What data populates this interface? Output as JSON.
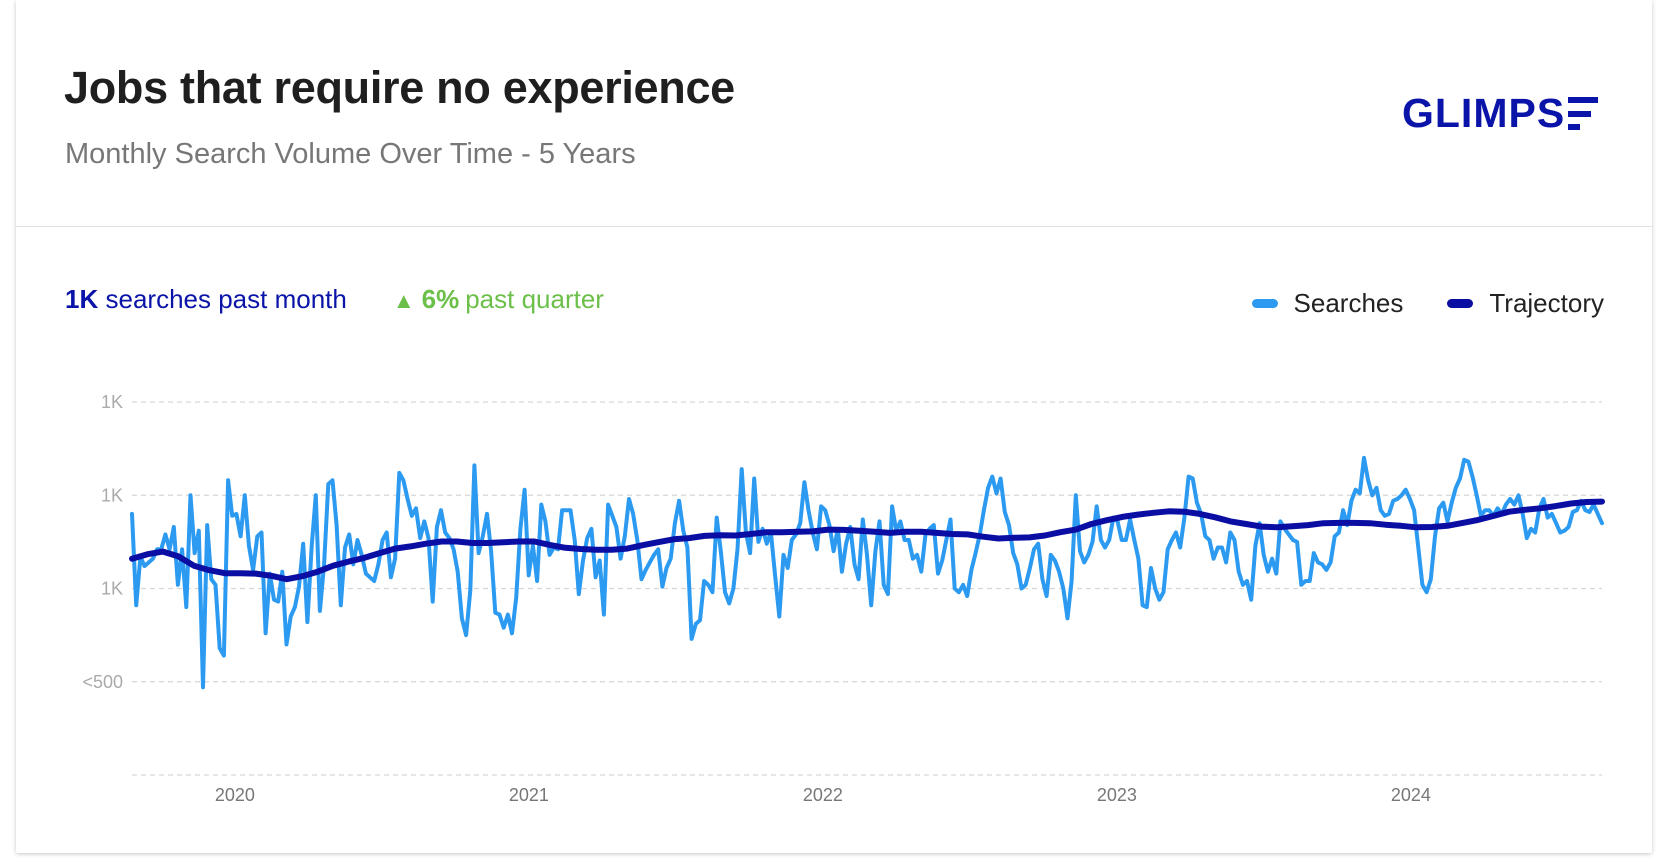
{
  "card": {
    "title": "Jobs that require no experience",
    "subtitle": "Monthly Search Volume Over Time - 5 Years",
    "logo": "GLIMPS"
  },
  "stats": {
    "month_value": "1K",
    "month_text": "searches past month",
    "quarter_value": "6%",
    "quarter_text": "past quarter",
    "quarter_arrow": "▲"
  },
  "chart_data": {
    "type": "line",
    "title": "",
    "xlabel": "",
    "ylabel": "",
    "x_start": 2019.7,
    "x_end": 2024.7,
    "x_ticks": [
      {
        "value": 2020.05,
        "label": "2020"
      },
      {
        "value": 2021.05,
        "label": "2021"
      },
      {
        "value": 2022.05,
        "label": "2022"
      },
      {
        "value": 2023.05,
        "label": "2023"
      },
      {
        "value": 2024.05,
        "label": "2024"
      }
    ],
    "y_ticks": [
      {
        "value": 1250,
        "label": "1K"
      },
      {
        "value": 1000,
        "label": "1K"
      },
      {
        "value": 750,
        "label": "1K"
      },
      {
        "value": 500,
        "label": "<500"
      },
      {
        "value": 250,
        "label": ""
      }
    ],
    "ylim": [
      250,
      1250
    ],
    "grid": true,
    "legend_position": "top-right",
    "series": [
      {
        "name": "Searches",
        "color": "#2b9af0",
        "values": [
          950,
          705,
          835,
          810,
          820,
          830,
          855,
          855,
          895,
          855,
          915,
          760,
          855,
          700,
          1000,
          845,
          905,
          485,
          920,
          775,
          760,
          590,
          570,
          1040,
          945,
          950,
          890,
          1000,
          865,
          800,
          890,
          900,
          630,
          790,
          720,
          715,
          795,
          600,
          675,
          700,
          755,
          870,
          660,
          860,
          1000,
          690,
          815,
          1030,
          1040,
          920,
          705,
          860,
          895,
          815,
          880,
          840,
          790,
          780,
          770,
          815,
          880,
          900,
          780,
          830,
          1060,
          1040,
          990,
          945,
          965,
          885,
          930,
          885,
          715,
          915,
          960,
          900,
          885,
          855,
          795,
          670,
          625,
          745,
          1080,
          845,
          890,
          950,
          850,
          685,
          680,
          645,
          680,
          630,
          725,
          910,
          1015,
          785,
          865,
          770,
          975,
          930,
          840,
          860,
          855,
          960,
          960,
          960,
          880,
          735,
          825,
          885,
          910,
          780,
          825,
          680,
          975,
          945,
          915,
          830,
          890,
          990,
          950,
          880,
          775,
          800,
          820,
          840,
          855,
          755,
          805,
          830,
          925,
          985,
          905,
          860,
          615,
          655,
          665,
          770,
          760,
          740,
          940,
          850,
          740,
          710,
          750,
          855,
          1070,
          900,
          845,
          1045,
          875,
          910,
          870,
          900,
          785,
          675,
          840,
          805,
          880,
          895,
          925,
          1035,
          960,
          900,
          855,
          970,
          960,
          920,
          850,
          910,
          795,
          870,
          915,
          815,
          775,
          935,
          840,
          705,
          850,
          930,
          760,
          735,
          970,
          905,
          930,
          880,
          880,
          830,
          840,
          795,
          895,
          910,
          920,
          790,
          825,
          880,
          935,
          750,
          740,
          760,
          730,
          800,
          845,
          895,
          960,
          1020,
          1050,
          1005,
          1045,
          955,
          920,
          845,
          815,
          750,
          760,
          805,
          855,
          870,
          775,
          730,
          840,
          825,
          795,
          750,
          670,
          770,
          1000,
          850,
          820,
          840,
          875,
          970,
          880,
          860,
          880,
          940,
          930,
          880,
          880,
          935,
          880,
          830,
          705,
          700,
          805,
          750,
          720,
          740,
          855,
          880,
          900,
          860,
          940,
          1050,
          1045,
          980,
          950,
          890,
          880,
          830,
          860,
          860,
          820,
          900,
          880,
          795,
          760,
          770,
          720,
          865,
          925,
          840,
          795,
          830,
          790,
          930,
          910,
          895,
          880,
          875,
          760,
          770,
          770,
          845,
          820,
          815,
          800,
          820,
          890,
          900,
          960,
          920,
          985,
          1015,
          1005,
          1100,
          1040,
          1000,
          1020,
          960,
          945,
          950,
          985,
          990,
          1000,
          1015,
          990,
          960,
          860,
          760,
          740,
          775,
          890,
          965,
          980,
          930,
          980,
          1020,
          1045,
          1095,
          1090,
          1050,
          1000,
          945,
          960,
          960,
          945,
          965,
          950,
          975,
          990,
          975,
          1000,
          950,
          885,
          910,
          900,
          965,
          990,
          940,
          950,
          925,
          900,
          905,
          915,
          955,
          960,
          985,
          960,
          955,
          975,
          950,
          925
        ]
      },
      {
        "name": "Trajectory",
        "color": "#0a0ea3",
        "values": [
          830,
          842,
          849,
          836,
          811,
          799,
          791,
          791,
          790,
          784,
          775,
          783,
          795,
          811,
          822,
          832,
          845,
          857,
          863,
          870,
          876,
          876,
          872,
          872,
          874,
          876,
          876,
          867,
          859,
          856,
          854,
          854,
          857,
          866,
          874,
          882,
          885,
          891,
          893,
          892,
          896,
          901,
          901,
          902,
          903,
          908,
          907,
          905,
          902,
          899,
          902,
          902,
          899,
          896,
          895,
          889,
          884,
          886,
          887,
          892,
          901,
          908,
          923,
          933,
          942,
          948,
          953,
          957,
          956,
          950,
          941,
          930,
          923,
          916,
          914,
          917,
          920,
          925,
          926,
          926,
          925,
          921,
          918,
          914,
          915,
          918,
          926,
          934,
          945,
          956,
          961,
          965,
          971,
          978,
          982,
          983
        ]
      }
    ]
  },
  "legend": {
    "searches_label": "Searches",
    "searches_color": "#2b9af0",
    "trajectory_label": "Trajectory",
    "trajectory_color": "#0a0ea3"
  }
}
